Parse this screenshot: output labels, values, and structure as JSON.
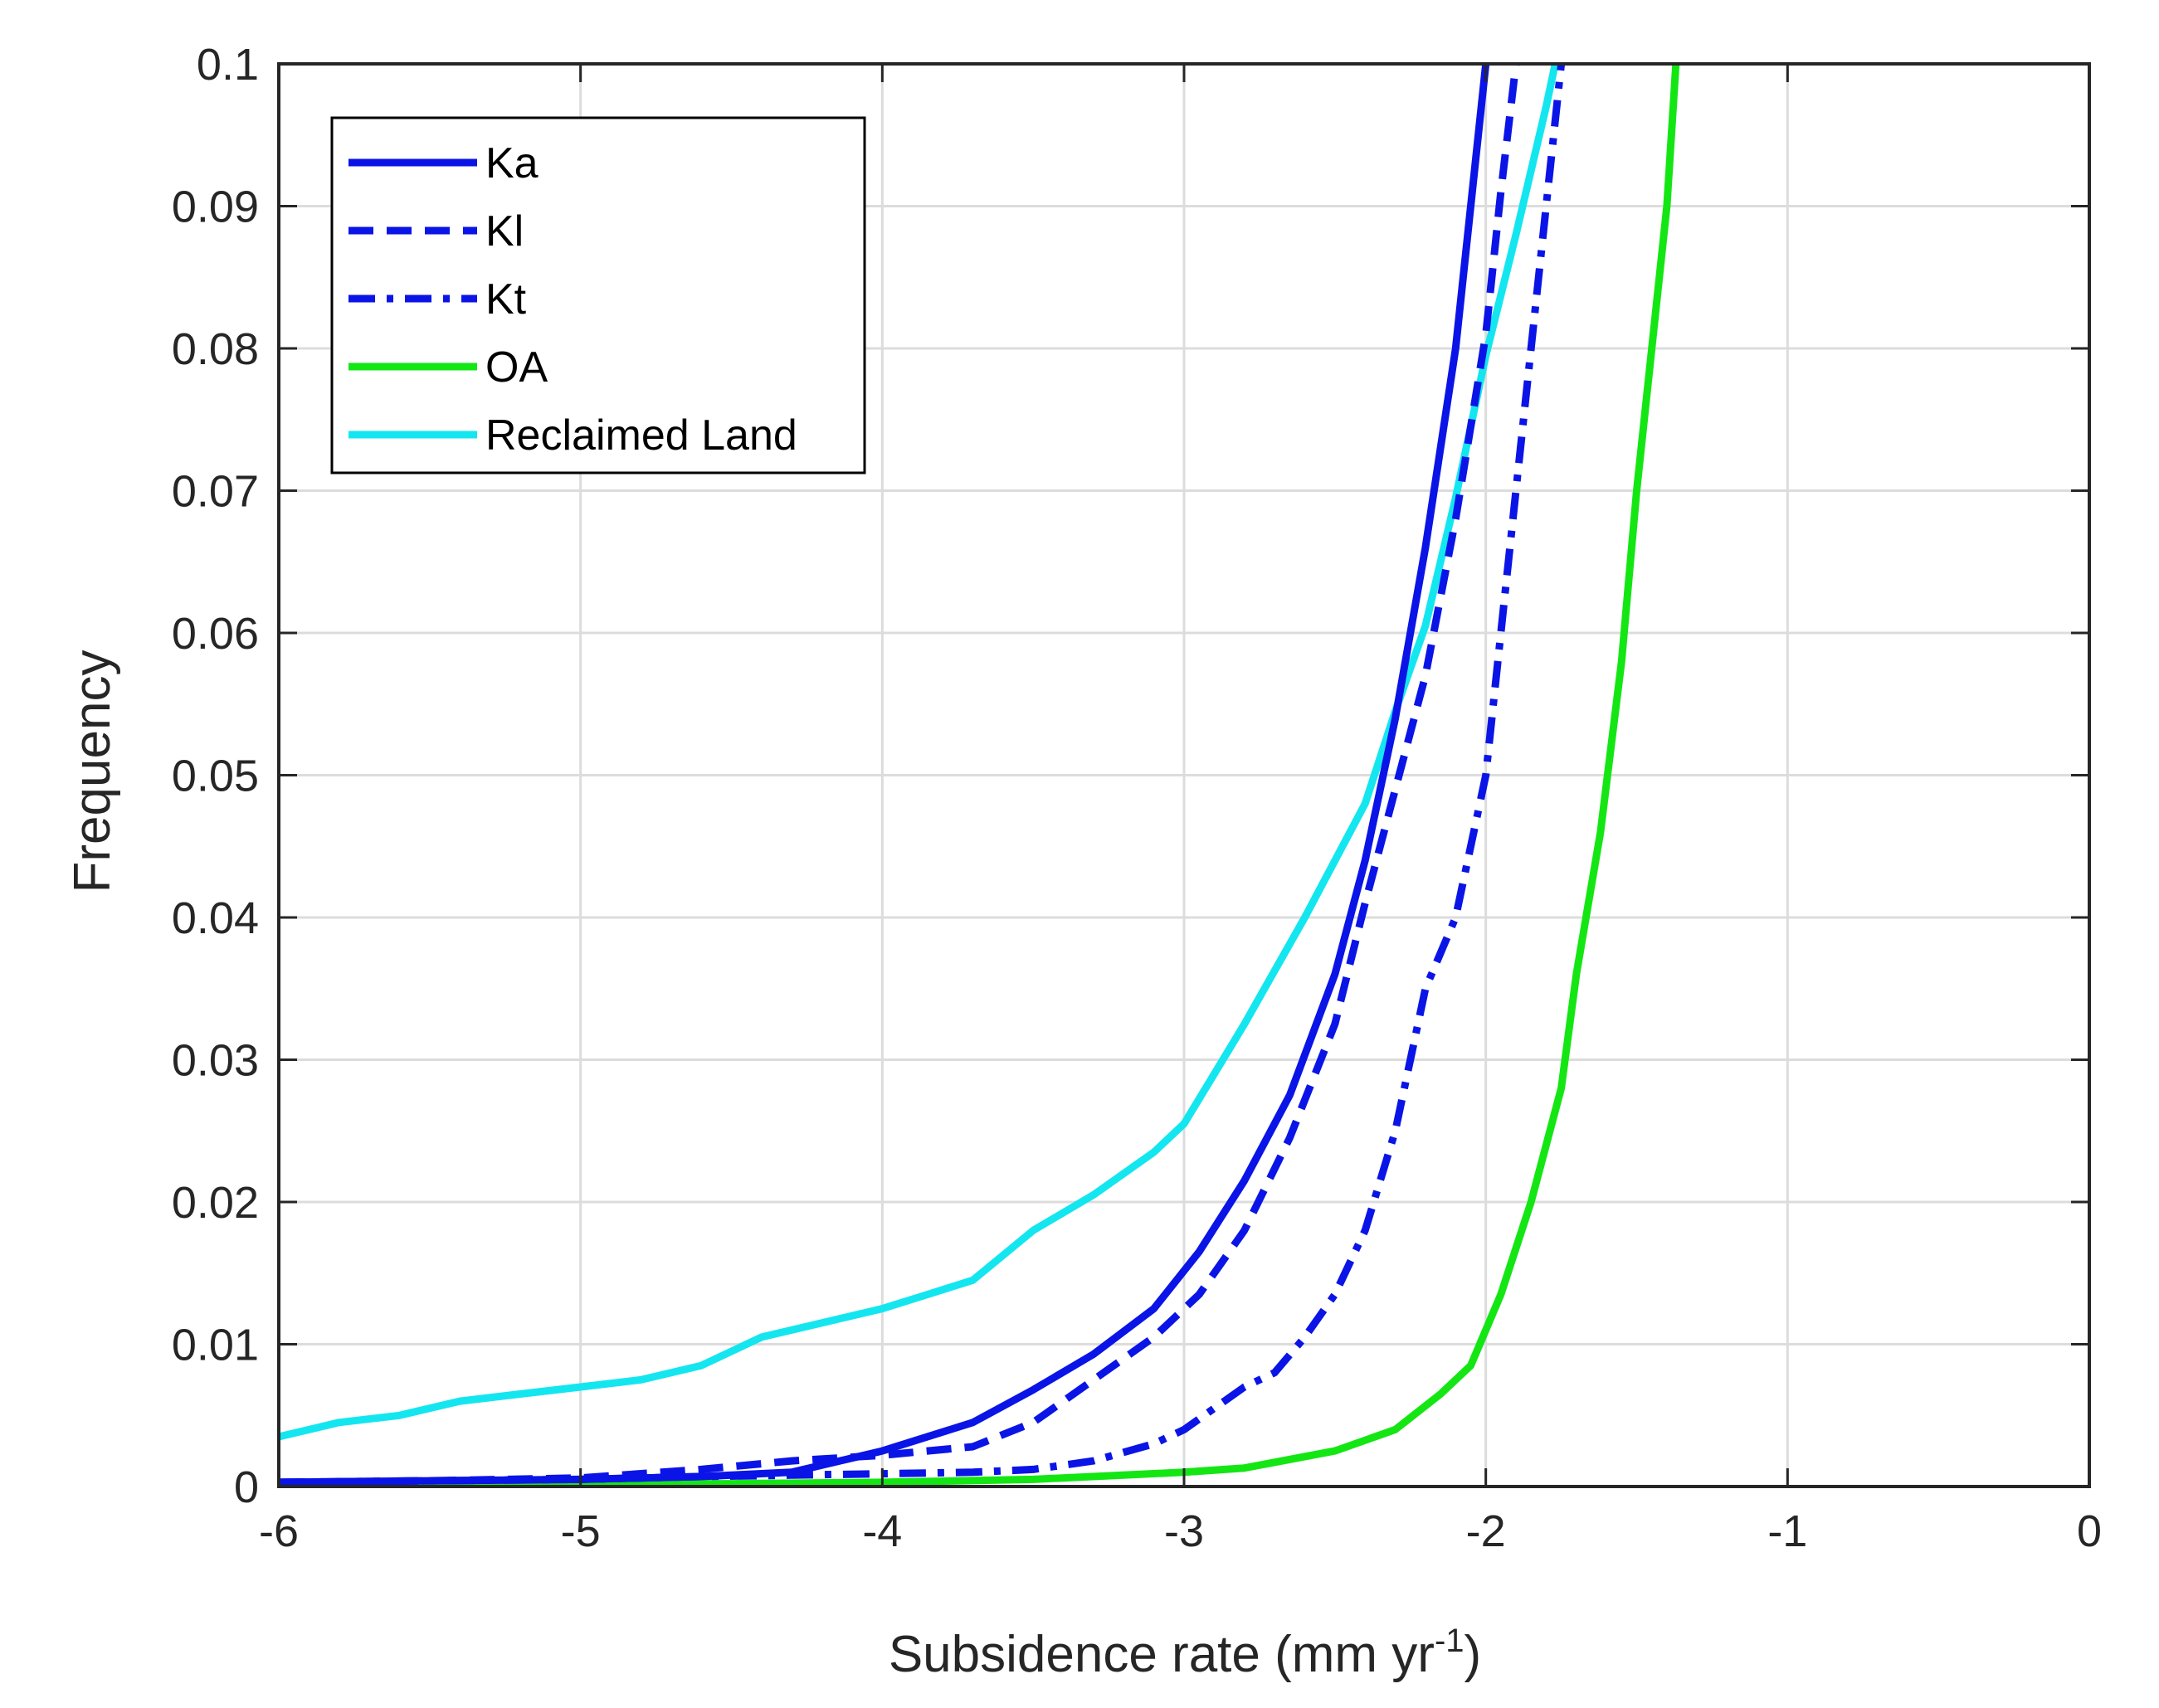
{
  "chart_data": {
    "type": "line",
    "title": "",
    "xlabel": "Subsidence rate (mm yr",
    "xlabel_superscript": "-1",
    "xlabel_suffix": ")",
    "ylabel": "Frequency",
    "xlim": [
      -6,
      0
    ],
    "ylim": [
      0,
      0.1
    ],
    "grid": true,
    "legend_position": "top-left",
    "x_ticks": [
      "-6",
      "-5",
      "-4",
      "-3",
      "-2",
      "-1",
      "0"
    ],
    "y_ticks": [
      "0",
      "0.01",
      "0.02",
      "0.03",
      "0.04",
      "0.05",
      "0.06",
      "0.07",
      "0.08",
      "0.09",
      "0.1"
    ],
    "series": [
      {
        "name": "Ka",
        "color": "#0a14e6",
        "style": "solid",
        "x": [
          -6.0,
          -5.5,
          -5.0,
          -4.6,
          -4.3,
          -4.0,
          -3.7,
          -3.5,
          -3.3,
          -3.1,
          -2.95,
          -2.8,
          -2.65,
          -2.5,
          -2.4,
          -2.3,
          -2.2,
          -2.1,
          -2.05,
          -2.0
        ],
        "y": [
          0.0003,
          0.0004,
          0.0005,
          0.0007,
          0.001,
          0.0025,
          0.0045,
          0.0068,
          0.0093,
          0.0125,
          0.0165,
          0.0215,
          0.0275,
          0.036,
          0.044,
          0.054,
          0.066,
          0.08,
          0.09,
          0.1
        ]
      },
      {
        "name": "Kl",
        "color": "#0a14e6",
        "style": "dashed",
        "x": [
          -6.0,
          -5.5,
          -5.0,
          -4.6,
          -4.3,
          -4.0,
          -3.7,
          -3.5,
          -3.3,
          -3.1,
          -2.95,
          -2.8,
          -2.65,
          -2.5,
          -2.4,
          -2.3,
          -2.2,
          -2.1,
          -2.0,
          -1.95,
          -1.9
        ],
        "y": [
          0.0003,
          0.0004,
          0.0006,
          0.0012,
          0.0018,
          0.0022,
          0.0028,
          0.0045,
          0.0075,
          0.0105,
          0.0135,
          0.018,
          0.0245,
          0.0325,
          0.041,
          0.049,
          0.057,
          0.068,
          0.081,
          0.091,
          0.1
        ]
      },
      {
        "name": "Kt",
        "color": "#0a14e6",
        "style": "dashdot",
        "x": [
          -6.0,
          -5.5,
          -5.0,
          -4.6,
          -4.3,
          -4.0,
          -3.7,
          -3.5,
          -3.3,
          -3.1,
          -3.0,
          -2.9,
          -2.8,
          -2.7,
          -2.6,
          -2.5,
          -2.4,
          -2.3,
          -2.2,
          -2.1,
          -2.0,
          -1.95,
          -1.9,
          -1.85,
          -1.8,
          -1.75
        ],
        "y": [
          0.0003,
          0.0004,
          0.0005,
          0.0007,
          0.0008,
          0.0009,
          0.001,
          0.0012,
          0.0018,
          0.003,
          0.004,
          0.0055,
          0.007,
          0.008,
          0.0105,
          0.0135,
          0.018,
          0.025,
          0.035,
          0.04,
          0.05,
          0.06,
          0.07,
          0.08,
          0.09,
          0.1
        ]
      },
      {
        "name": "OA",
        "color": "#14e614",
        "style": "solid",
        "x": [
          -6.0,
          -5.5,
          -5.0,
          -4.5,
          -4.0,
          -3.5,
          -3.0,
          -2.8,
          -2.5,
          -2.3,
          -2.15,
          -2.05,
          -1.95,
          -1.85,
          -1.75,
          -1.7,
          -1.62,
          -1.55,
          -1.5,
          -1.45,
          -1.4,
          -1.37
        ],
        "y": [
          0.0002,
          0.0002,
          0.0002,
          0.0002,
          0.0003,
          0.0005,
          0.001,
          0.0013,
          0.0025,
          0.004,
          0.0065,
          0.0085,
          0.0135,
          0.02,
          0.028,
          0.036,
          0.046,
          0.058,
          0.07,
          0.08,
          0.09,
          0.1
        ]
      },
      {
        "name": "Reclaimed Land",
        "color": "#14e6f0",
        "style": "solid",
        "x": [
          -6.0,
          -5.8,
          -5.6,
          -5.4,
          -5.2,
          -5.0,
          -4.8,
          -4.6,
          -4.4,
          -4.2,
          -4.0,
          -3.85,
          -3.7,
          -3.5,
          -3.3,
          -3.1,
          -3.0,
          -2.9,
          -2.8,
          -2.6,
          -2.4,
          -2.3,
          -2.2,
          -2.1,
          -2.0,
          -1.9,
          -1.8,
          -1.77
        ],
        "y": [
          0.0035,
          0.0045,
          0.005,
          0.006,
          0.0065,
          0.007,
          0.0075,
          0.0085,
          0.0105,
          0.0115,
          0.0125,
          0.0135,
          0.0145,
          0.018,
          0.0205,
          0.0235,
          0.0255,
          0.029,
          0.0325,
          0.04,
          0.048,
          0.0545,
          0.0605,
          0.0695,
          0.0795,
          0.088,
          0.097,
          0.1
        ]
      }
    ]
  }
}
